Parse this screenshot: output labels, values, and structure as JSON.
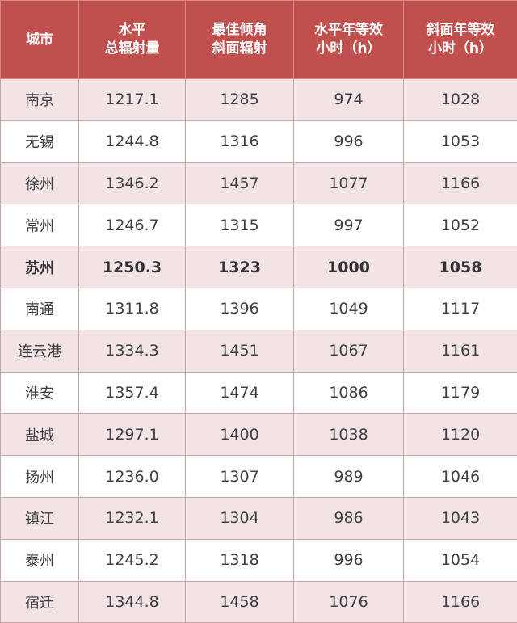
{
  "headers": [
    "城市",
    "水平\n总辐射量",
    "最佳倾角\n斜面辐射",
    "水平年等效\n小时（h）",
    "斜面年等效\n小时（h）"
  ],
  "header_color": "#c0504d",
  "stripe_color": "#f2e4e4",
  "highlighted_row": "苏州",
  "rows": [
    [
      "南京",
      "1217.1",
      "1285",
      "974",
      "1028"
    ],
    [
      "无锡",
      "1244.8",
      "1316",
      "996",
      "1053"
    ],
    [
      "徐州",
      "1346.2",
      "1457",
      "1077",
      "1166"
    ],
    [
      "常州",
      "1246.7",
      "1315",
      "997",
      "1052"
    ],
    [
      "苏州",
      "1250.3",
      "1323",
      "1000",
      "1058"
    ],
    [
      "南通",
      "1311.8",
      "1396",
      "1049",
      "1117"
    ],
    [
      "连云港",
      "1334.3",
      "1451",
      "1067",
      "1161"
    ],
    [
      "淮安",
      "1357.4",
      "1474",
      "1086",
      "1179"
    ],
    [
      "盐城",
      "1297.1",
      "1400",
      "1038",
      "1120"
    ],
    [
      "扬州",
      "1236.0",
      "1307",
      "989",
      "1046"
    ],
    [
      "镇江",
      "1232.1",
      "1304",
      "986",
      "1043"
    ],
    [
      "泰州",
      "1245.2",
      "1318",
      "996",
      "1054"
    ],
    [
      "宿迁",
      "1344.8",
      "1458",
      "1076",
      "1166"
    ]
  ]
}
